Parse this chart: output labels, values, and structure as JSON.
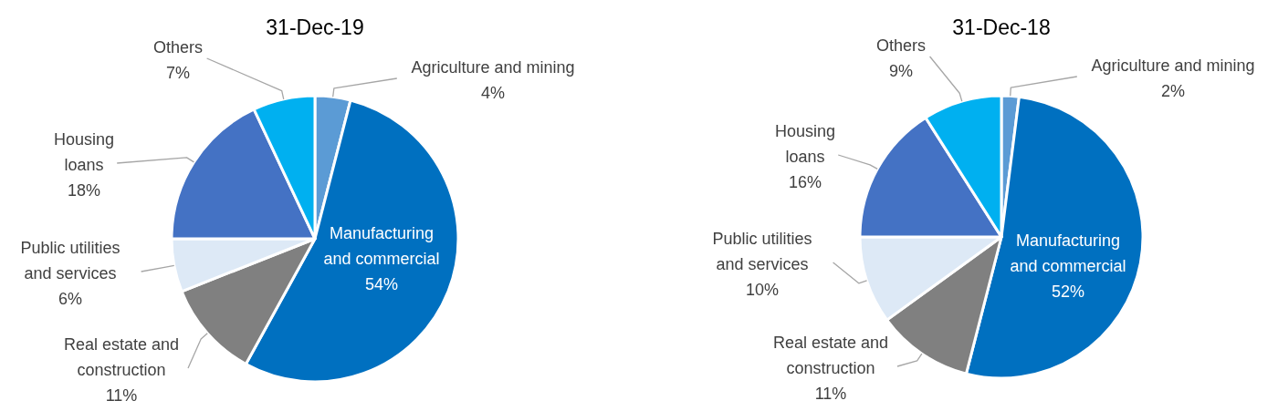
{
  "chart_data": [
    {
      "type": "pie",
      "title": "31-Dec-19",
      "value_labels": [
        "4%",
        "54%",
        "11%",
        "6%",
        "18%",
        "7%"
      ],
      "categories": [
        "Agriculture and mining",
        "Manufacturing and commercial",
        "Real estate and construction",
        "Public utilities and services",
        "Housing loans",
        "Others"
      ],
      "values": [
        4,
        54,
        11,
        6,
        18,
        7
      ],
      "colors": [
        "#5b9bd5",
        "#0070c0",
        "#808080",
        "#dde9f6",
        "#4472c4",
        "#00b0f0"
      ]
    },
    {
      "type": "pie",
      "title": "31-Dec-18",
      "value_labels": [
        "2%",
        "52%",
        "11%",
        "10%",
        "16%",
        "9%"
      ],
      "categories": [
        "Agriculture and mining",
        "Manufacturing and commercial",
        "Real estate and construction",
        "Public utilities and services",
        "Housing loans",
        "Others"
      ],
      "values": [
        2,
        52,
        11,
        10,
        16,
        9
      ],
      "colors": [
        "#5b9bd5",
        "#0070c0",
        "#808080",
        "#dde9f6",
        "#4472c4",
        "#00b0f0"
      ]
    }
  ]
}
